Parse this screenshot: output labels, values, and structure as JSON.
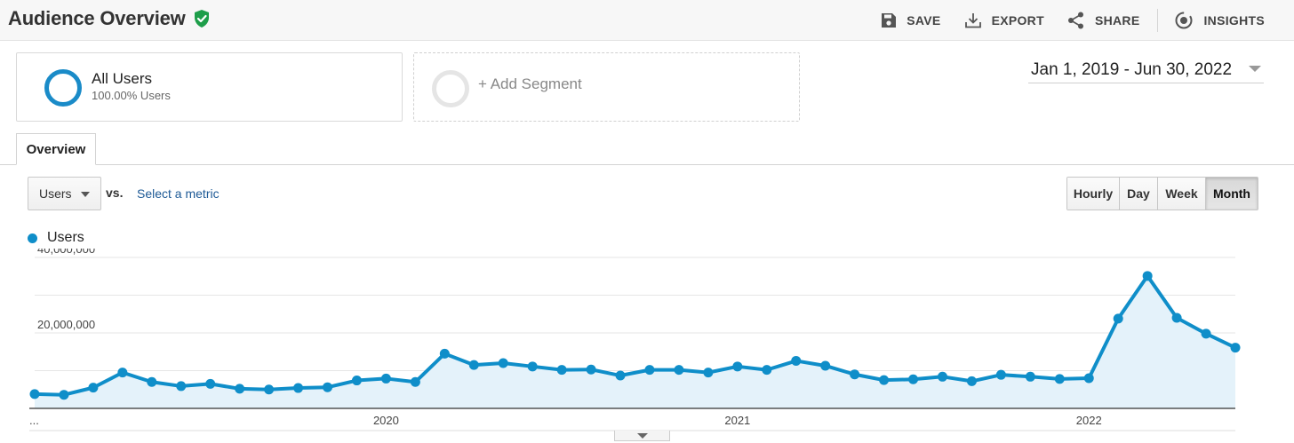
{
  "header": {
    "title": "Audience Overview",
    "actions": [
      {
        "label": "SAVE",
        "icon": "floppy-disk-icon"
      },
      {
        "label": "EXPORT",
        "icon": "download-icon"
      },
      {
        "label": "SHARE",
        "icon": "share-icon"
      },
      {
        "label": "INSIGHTS",
        "icon": "insights-icon"
      }
    ]
  },
  "segments": {
    "all_users": {
      "name": "All Users",
      "sub": "100.00% Users"
    },
    "add_label": "+ Add Segment"
  },
  "date_range": "Jan 1, 2019 - Jun 30, 2022",
  "tab": "Overview",
  "metric": {
    "selected": "Users",
    "vs": "vs.",
    "select_metric": "Select a metric"
  },
  "intervals": [
    {
      "label": "Hourly",
      "active": false
    },
    {
      "label": "Day",
      "active": false
    },
    {
      "label": "Week",
      "active": false
    },
    {
      "label": "Month",
      "active": true
    }
  ],
  "colors": {
    "series": "#0f8ec9",
    "fill": "#e4f2fa",
    "accent_green": "#1e9e4a"
  },
  "chart_data": {
    "type": "area",
    "series": [
      {
        "name": "Users"
      }
    ],
    "x": [
      "2019-01",
      "2019-02",
      "2019-03",
      "2019-04",
      "2019-05",
      "2019-06",
      "2019-07",
      "2019-08",
      "2019-09",
      "2019-10",
      "2019-11",
      "2019-12",
      "2020-01",
      "2020-02",
      "2020-03",
      "2020-04",
      "2020-05",
      "2020-06",
      "2020-07",
      "2020-08",
      "2020-09",
      "2020-10",
      "2020-11",
      "2020-12",
      "2021-01",
      "2021-02",
      "2021-03",
      "2021-04",
      "2021-05",
      "2021-06",
      "2021-07",
      "2021-08",
      "2021-09",
      "2021-10",
      "2021-11",
      "2021-12",
      "2022-01",
      "2022-02",
      "2022-03",
      "2022-04",
      "2022-05",
      "2022-06"
    ],
    "values": [
      3800000,
      3600000,
      5500000,
      9500000,
      7000000,
      5900000,
      6500000,
      5200000,
      5000000,
      5400000,
      5600000,
      7400000,
      7900000,
      7000000,
      14500000,
      11500000,
      12000000,
      11100000,
      10200000,
      10300000,
      8700000,
      10200000,
      10200000,
      9500000,
      11100000,
      10200000,
      12600000,
      11300000,
      9000000,
      7500000,
      7700000,
      8400000,
      7200000,
      8900000,
      8400000,
      7800000,
      8000000,
      23800000,
      35100000,
      24000000,
      19800000,
      16100000
    ],
    "ylim": [
      0,
      40000000
    ],
    "yticks": [
      {
        "value": 20000000,
        "label": "20,000,000"
      },
      {
        "value": 40000000,
        "label": "40,000,000"
      }
    ],
    "xticks": [
      {
        "label": "...",
        "index": 0
      },
      {
        "label": "2020",
        "index": 12
      },
      {
        "label": "2021",
        "index": 24
      },
      {
        "label": "2022",
        "index": 36
      }
    ],
    "grid": true
  }
}
